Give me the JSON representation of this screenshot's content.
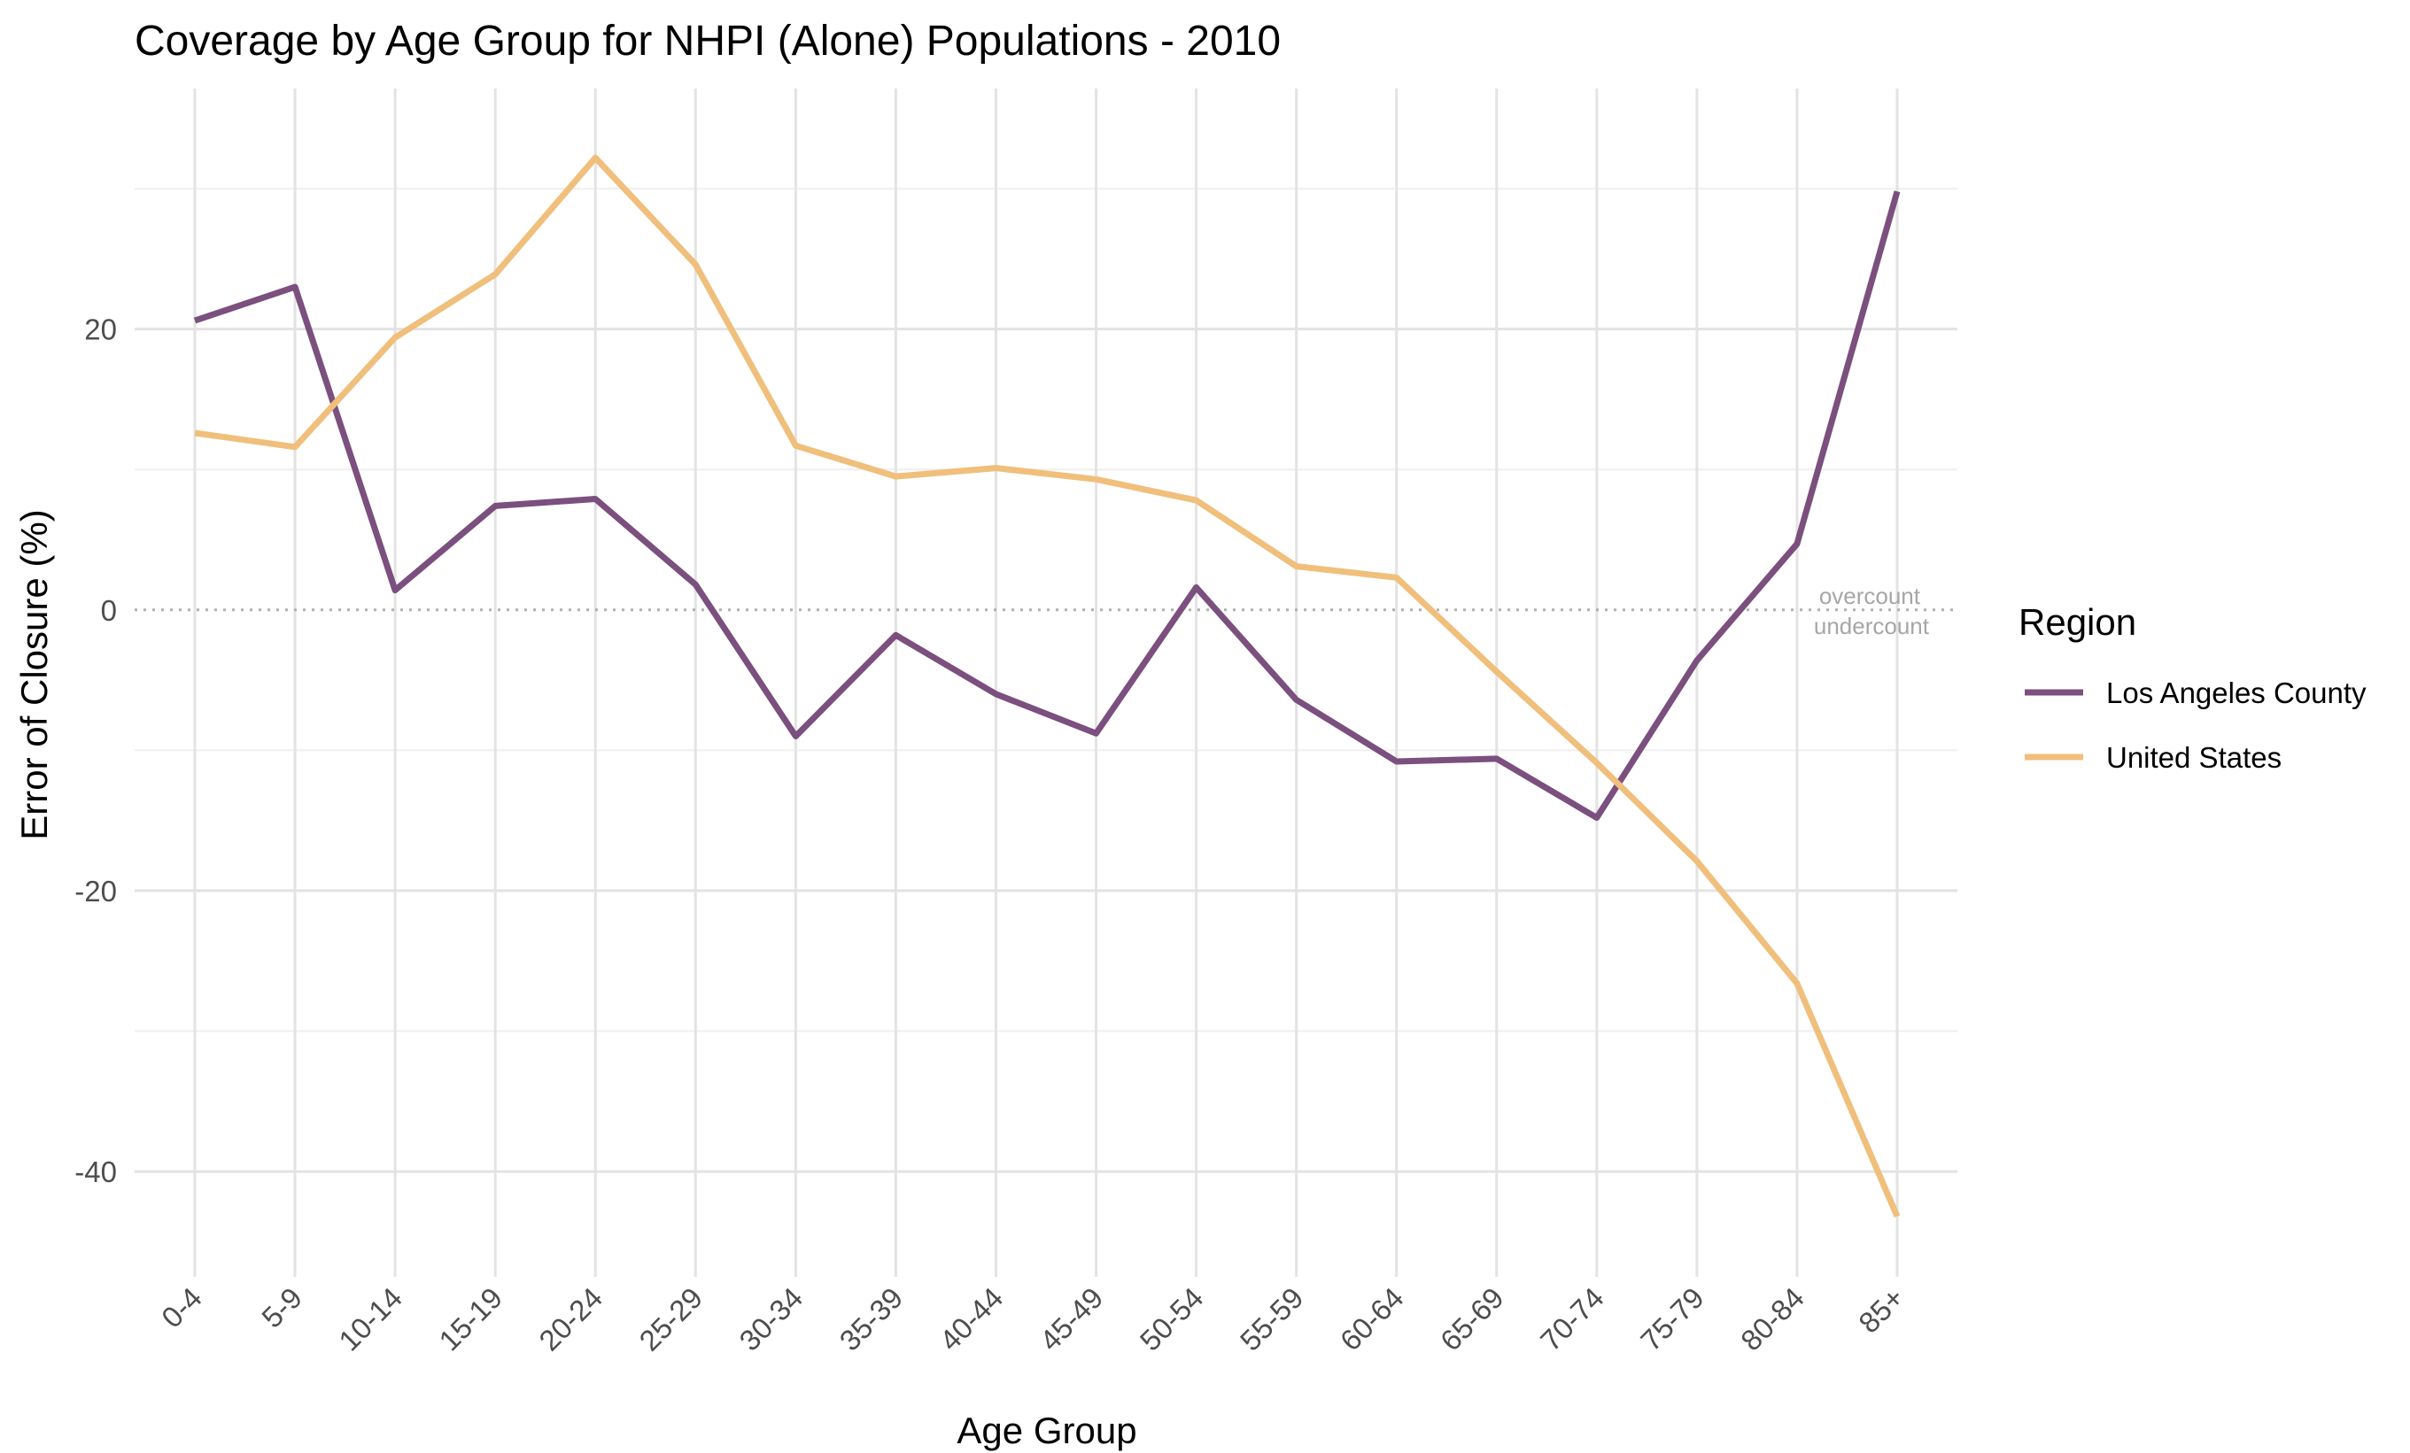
{
  "chart_data": {
    "type": "line",
    "title": "Coverage by Age Group for NHPI (Alone) Populations - 2010",
    "xlabel": "Age Group",
    "ylabel": "Error of Closure (%)",
    "categories": [
      "0-4",
      "5-9",
      "10-14",
      "15-19",
      "20-24",
      "25-29",
      "30-34",
      "35-39",
      "40-44",
      "45-49",
      "50-54",
      "55-59",
      "60-64",
      "65-69",
      "70-74",
      "75-79",
      "80-84",
      "85+"
    ],
    "ylim": [
      -47.5,
      36.5
    ],
    "yticks": [
      {
        "value": -40,
        "label": "-40"
      },
      {
        "value": -20,
        "label": "-20"
      },
      {
        "value": 0,
        "label": "0"
      },
      {
        "value": 20,
        "label": "20"
      }
    ],
    "yminor": [
      -30,
      -10,
      10,
      30
    ],
    "grid": true,
    "legend": {
      "title": "Region",
      "position": "right"
    },
    "series": [
      {
        "name": "Los Angeles County",
        "color": "#7b4f7e",
        "values": [
          20.6,
          23.0,
          1.4,
          7.4,
          7.9,
          1.8,
          -9.0,
          -1.8,
          -6.0,
          -8.8,
          1.6,
          -6.4,
          -10.8,
          -10.6,
          -14.8,
          -3.6,
          4.7,
          29.8
        ]
      },
      {
        "name": "United States",
        "color": "#f0bf7c",
        "values": [
          12.6,
          11.6,
          19.4,
          23.9,
          32.2,
          24.6,
          11.7,
          9.5,
          10.1,
          9.3,
          7.8,
          3.1,
          2.3,
          -4.4,
          -10.9,
          -17.9,
          -26.6,
          -43.2
        ]
      }
    ],
    "annotations": {
      "above": "overcount",
      "below": "undercount"
    }
  }
}
